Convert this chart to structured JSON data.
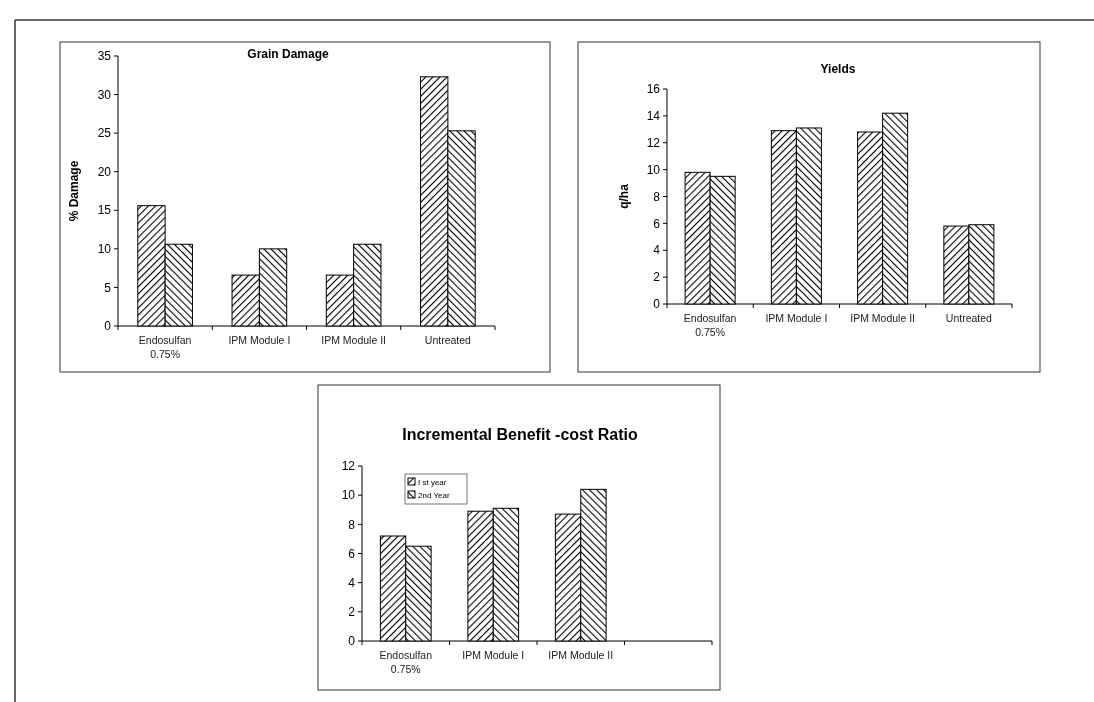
{
  "chart_data": [
    {
      "type": "bar",
      "title": "Grain Damage",
      "ylabel": "% Damage",
      "categories": [
        "Endosulfan 0.75%",
        "IPM Module I",
        "IPM Module II",
        "Untreated"
      ],
      "series": [
        {
          "color": "#000000",
          "values": [
            15.6,
            6.6,
            6.6,
            32.3
          ]
        },
        {
          "color": "#000000",
          "values": [
            10.6,
            10.0,
            10.6,
            25.3
          ]
        }
      ],
      "ylim": [
        0,
        35
      ],
      "yticks": [
        0,
        5,
        10,
        15,
        20,
        25,
        30,
        35
      ],
      "legend": false
    },
    {
      "type": "bar",
      "title": "Yields",
      "ylabel": "q/ha",
      "categories": [
        "Endosulfan 0.75%",
        "IPM Module I",
        "IPM Module II",
        "Untreated"
      ],
      "series": [
        {
          "color": "#000000",
          "values": [
            9.8,
            12.9,
            12.8,
            5.8
          ]
        },
        {
          "color": "#000000",
          "values": [
            9.5,
            13.1,
            14.2,
            5.9
          ]
        }
      ],
      "ylim": [
        0,
        16
      ],
      "yticks": [
        0,
        2,
        4,
        6,
        8,
        10,
        12,
        14,
        16
      ],
      "legend": false
    },
    {
      "type": "bar",
      "title": "Incremental Benefit -cost Ratio",
      "categories": [
        "Endosulfan 0.75%",
        "IPM Module I",
        "IPM Module II",
        null
      ],
      "series": [
        {
          "name": "I st year",
          "color": "#000000",
          "values": [
            7.2,
            8.9,
            8.7,
            null
          ]
        },
        {
          "name": "2nd Year",
          "color": "#000000",
          "values": [
            6.5,
            9.1,
            10.4,
            null
          ]
        }
      ],
      "ylim": [
        0,
        12
      ],
      "yticks": [
        0,
        2,
        4,
        6,
        8,
        10,
        12
      ],
      "legend": "top left"
    }
  ]
}
